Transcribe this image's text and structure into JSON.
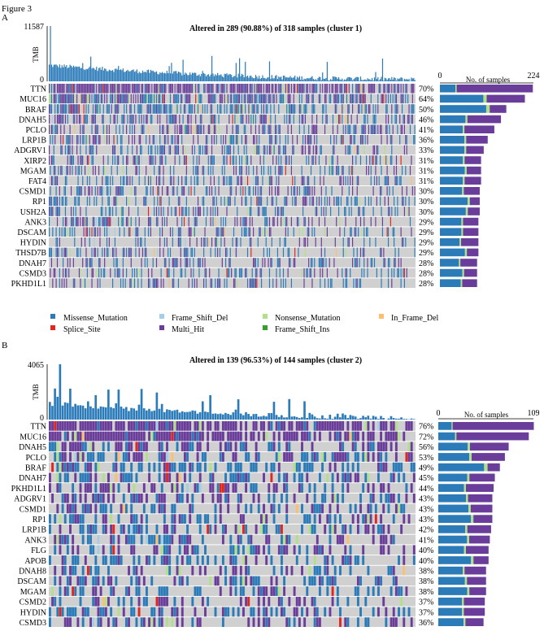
{
  "figure_label": "Figure 3",
  "colors": {
    "Missense_Mutation": "#2b7bb9",
    "Splice_Site": "#e0261f",
    "Frame_Shift_Del": "#a6cee3",
    "Multi_Hit": "#6a3d9a",
    "Nonsense_Mutation": "#b2df8a",
    "Frame_Shift_Ins": "#33a02c",
    "In_Frame_Del": "#fdbf6f",
    "empty": "#d0d0d0",
    "tmb_bar": "#2b7bb9"
  },
  "legend": [
    "Missense_Mutation",
    "Splice_Site",
    "Frame_Shift_Del",
    "Multi_Hit",
    "Nonsense_Mutation",
    "Frame_Shift_Ins",
    "In_Frame_Del"
  ],
  "chart_data": [
    {
      "type": "heatmap",
      "panel_label": "A",
      "title": "Altered in 289 (90.88%) of 318 samples (cluster 1)",
      "tmb_ylabel": "TMB",
      "tmb_max": 11587,
      "tmb_min": 0,
      "n_samples": 318,
      "side_xlabel": "No. of samples",
      "side_xlim": [
        0,
        224
      ],
      "genes": [
        "TTN",
        "MUC16",
        "BRAF",
        "DNAH5",
        "PCLO",
        "LRP1B",
        "ADGRV1",
        "XIRP2",
        "MGAM",
        "FAT4",
        "CSMD1",
        "RP1",
        "USH2A",
        "ANK3",
        "DSCAM",
        "HYDIN",
        "THSD7B",
        "DNAH7",
        "CSMD3",
        "PKHD1L1"
      ],
      "percents": [
        "70%",
        "64%",
        "50%",
        "46%",
        "41%",
        "36%",
        "33%",
        "31%",
        "31%",
        "31%",
        "30%",
        "30%",
        "30%",
        "29%",
        "29%",
        "29%",
        "29%",
        "28%",
        "28%",
        "28%"
      ],
      "gene_pct": [
        70,
        64,
        50,
        46,
        41,
        36,
        33,
        31,
        31,
        31,
        30,
        30,
        30,
        29,
        29,
        29,
        29,
        28,
        28,
        28
      ],
      "multi_hit_frac": [
        0.82,
        0.45,
        0.25,
        0.55,
        0.55,
        0.45,
        0.4,
        0.4,
        0.35,
        0.4,
        0.4,
        0.25,
        0.3,
        0.4,
        0.4,
        0.45,
        0.3,
        0.45,
        0.35,
        0.4
      ]
    },
    {
      "type": "heatmap",
      "panel_label": "B",
      "title": "Altered in 139 (96.53%) of 144 samples (cluster 2)",
      "tmb_ylabel": "TMB",
      "tmb_max": 4065,
      "tmb_min": 0,
      "n_samples": 144,
      "side_xlabel": "No. of samples",
      "side_xlim": [
        0,
        109
      ],
      "genes": [
        "TTN",
        "MUC16",
        "DNAH5",
        "PCLO",
        "BRAF",
        "DNAH7",
        "PKHD1L1",
        "ADGRV1",
        "CSMD1",
        "RP1",
        "LRP1B",
        "ANK3",
        "FLG",
        "APOB",
        "DNAH8",
        "DSCAM",
        "MGAM",
        "CSMD2",
        "HYDIN",
        "CSMD3"
      ],
      "percents": [
        "76%",
        "72%",
        "56%",
        "53%",
        "49%",
        "45%",
        "44%",
        "43%",
        "43%",
        "43%",
        "42%",
        "41%",
        "40%",
        "40%",
        "38%",
        "38%",
        "38%",
        "37%",
        "37%",
        "36%"
      ],
      "gene_pct": [
        76,
        72,
        56,
        53,
        49,
        45,
        44,
        43,
        43,
        43,
        42,
        41,
        40,
        40,
        38,
        38,
        38,
        37,
        37,
        36
      ],
      "multi_hit_frac": [
        0.85,
        0.8,
        0.55,
        0.5,
        0.2,
        0.45,
        0.5,
        0.45,
        0.4,
        0.35,
        0.45,
        0.4,
        0.45,
        0.3,
        0.45,
        0.4,
        0.35,
        0.45,
        0.45,
        0.4
      ]
    }
  ]
}
